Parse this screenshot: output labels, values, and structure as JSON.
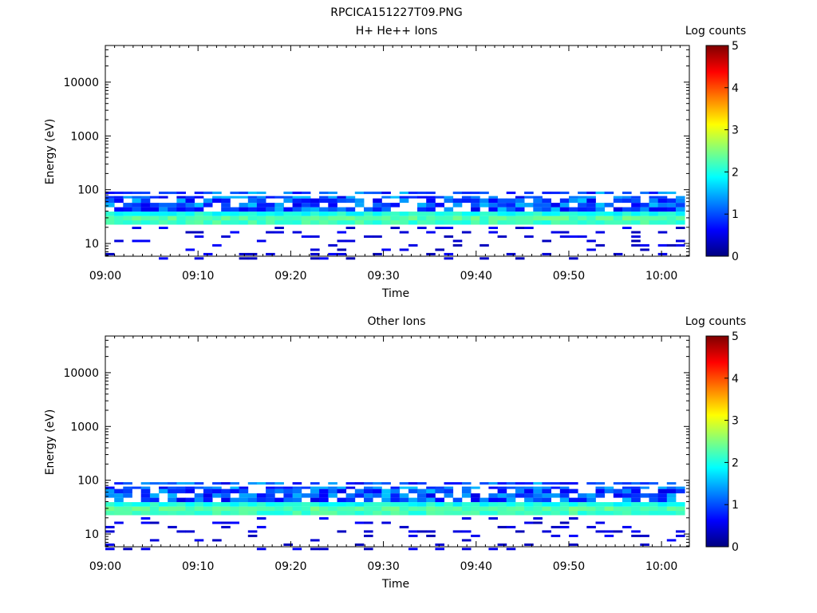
{
  "page_title": "RPCICA151227T09.PNG",
  "chart_data": [
    {
      "type": "heatmap",
      "title": "H+ He++ Ions",
      "xlabel": "Time",
      "ylabel": "Energy (eV)",
      "yscale": "log",
      "ylim": [
        5.8,
        48000
      ],
      "xlim_minutes": [
        0,
        63
      ],
      "x_tick_labels": [
        "09:00",
        "09:10",
        "09:20",
        "09:30",
        "09:40",
        "09:50",
        "10:00"
      ],
      "y_tick_labels": [
        "10",
        "100",
        "1000",
        "10000"
      ],
      "colorbar": {
        "label": "Log counts",
        "range": [
          0,
          5
        ],
        "tick_labels": [
          "0",
          "1",
          "2",
          "3",
          "4",
          "5"
        ]
      },
      "band_energy_eV": [
        5,
        100
      ],
      "peak_energy_eV": 28,
      "peak_log_counts": 2.4,
      "upper_band_log_counts_range": [
        0.5,
        1.6
      ]
    },
    {
      "type": "heatmap",
      "title": "Other Ions",
      "xlabel": "Time",
      "ylabel": "Energy (eV)",
      "yscale": "log",
      "ylim": [
        5.8,
        48000
      ],
      "xlim_minutes": [
        0,
        63
      ],
      "x_tick_labels": [
        "09:00",
        "09:10",
        "09:20",
        "09:30",
        "09:40",
        "09:50",
        "10:00"
      ],
      "y_tick_labels": [
        "10",
        "100",
        "1000",
        "10000"
      ],
      "colorbar": {
        "label": "Log counts",
        "range": [
          0,
          5
        ],
        "tick_labels": [
          "0",
          "1",
          "2",
          "3",
          "4",
          "5"
        ]
      },
      "band_energy_eV": [
        5,
        100
      ],
      "peak_energy_eV": 28,
      "peak_log_counts": 2.4,
      "upper_band_log_counts_range": [
        0.5,
        1.6
      ]
    }
  ]
}
